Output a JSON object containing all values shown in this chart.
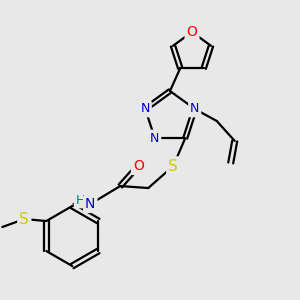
{
  "background_color": "#e8e8e8",
  "bond_color": "#000000",
  "atom_colors": {
    "N": "#0000cc",
    "O": "#ff0000",
    "S": "#cccc00",
    "H": "#008080",
    "C": "#000000"
  },
  "figsize": [
    3.0,
    3.0
  ],
  "dpi": 100
}
